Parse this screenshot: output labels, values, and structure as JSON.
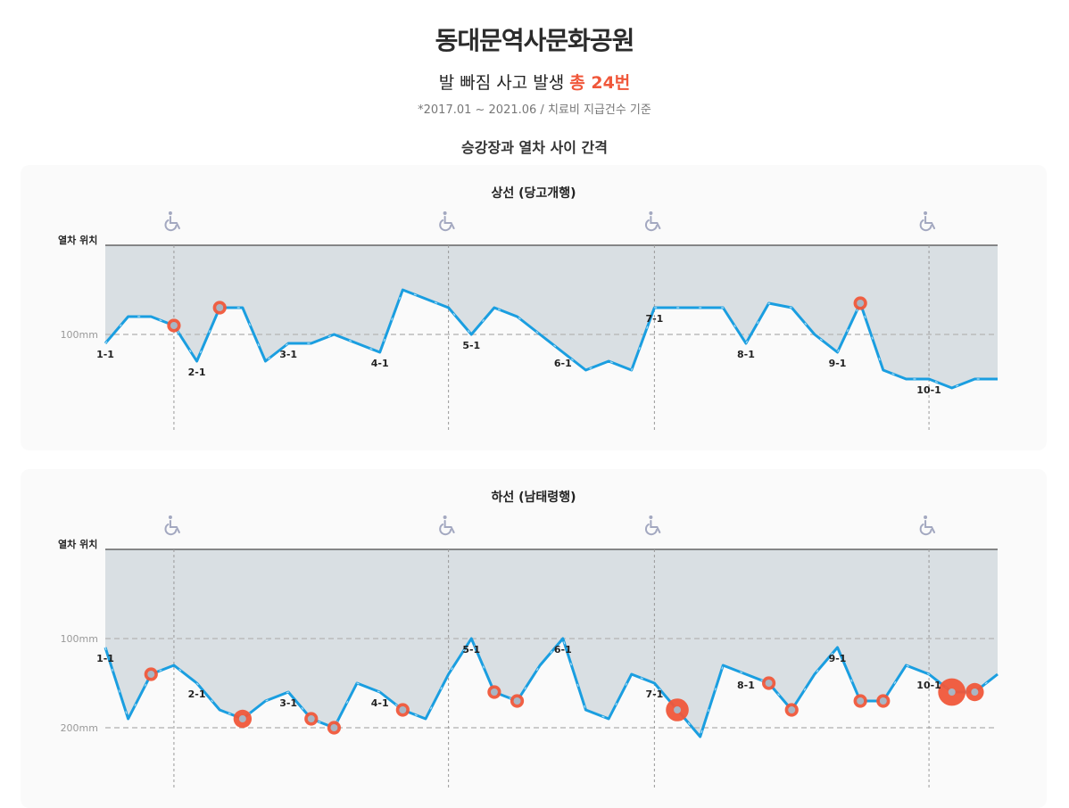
{
  "header": {
    "title": "동대문역사문화공원",
    "subtitle_prefix": "발 빠짐 사고 발생 ",
    "subtitle_highlight": "총 24번",
    "note": "*2017.01 ~ 2021.06 / 치료비 지급건수 기준",
    "section_label": "승강장과 열차 사이 간격"
  },
  "colors": {
    "line": "#1a9ee0",
    "line_highlight": "#bfe6fa",
    "area": "#d9dfe3",
    "accident": "#f0573a",
    "accident_center": "#a9b6c4",
    "wheelchair": "#a3a8c0",
    "reference_line": "#bbbbbb"
  },
  "chart_data": [
    {
      "type": "line",
      "title": "상선 (당고개행)",
      "ylabel": "열차 위치",
      "reference_lines": [
        {
          "value": 100,
          "label": "100mm"
        }
      ],
      "ylim": [
        0,
        150
      ],
      "x": [
        "1-1",
        "1-2",
        "1-3",
        "1-4",
        "2-1",
        "2-2",
        "2-3",
        "2-4",
        "3-1",
        "3-2",
        "3-3",
        "3-4",
        "4-1",
        "4-2",
        "4-3",
        "4-4",
        "5-1",
        "5-2",
        "5-3",
        "5-4",
        "6-1",
        "6-2",
        "6-3",
        "6-4",
        "7-1",
        "7-2",
        "7-3",
        "7-4",
        "8-1",
        "8-2",
        "8-3",
        "8-4",
        "9-1",
        "9-2",
        "9-3",
        "9-4",
        "10-1",
        "10-2",
        "10-3",
        "10-4"
      ],
      "tick_labels": [
        "1-1",
        "2-1",
        "3-1",
        "4-1",
        "5-1",
        "6-1",
        "7-1",
        "8-1",
        "9-1",
        "10-1"
      ],
      "wheelchair_positions": [
        "1-4",
        "4-4",
        "7-1",
        "10-1"
      ],
      "values": [
        110,
        80,
        80,
        90,
        130,
        70,
        70,
        130,
        110,
        110,
        100,
        110,
        120,
        50,
        60,
        70,
        100,
        70,
        80,
        100,
        120,
        140,
        130,
        140,
        70,
        70,
        70,
        70,
        110,
        65,
        70,
        100,
        120,
        65,
        140,
        150,
        150,
        160,
        150,
        150
      ],
      "accidents": [
        {
          "x": "1-4",
          "count": 1
        },
        {
          "x": "2-2",
          "count": 1
        },
        {
          "x": "9-2",
          "count": 1
        }
      ]
    },
    {
      "type": "line",
      "title": "하선 (남태령행)",
      "ylabel": "열차 위치",
      "reference_lines": [
        {
          "value": 100,
          "label": "100mm"
        },
        {
          "value": 200,
          "label": "200mm"
        }
      ],
      "ylim": [
        0,
        200
      ],
      "x": [
        "1-1",
        "1-2",
        "1-3",
        "1-4",
        "2-1",
        "2-2",
        "2-3",
        "2-4",
        "3-1",
        "3-2",
        "3-3",
        "3-4",
        "4-1",
        "4-2",
        "4-3",
        "4-4",
        "5-1",
        "5-2",
        "5-3",
        "5-4",
        "6-1",
        "6-2",
        "6-3",
        "6-4",
        "7-1",
        "7-2",
        "7-3",
        "7-4",
        "8-1",
        "8-2",
        "8-3",
        "8-4",
        "9-1",
        "9-2",
        "9-3",
        "9-4",
        "10-1",
        "10-2",
        "10-3",
        "10-4"
      ],
      "tick_labels": [
        "1-1",
        "2-1",
        "3-1",
        "4-1",
        "5-1",
        "6-1",
        "7-1",
        "8-1",
        "9-1",
        "10-1"
      ],
      "wheelchair_positions": [
        "1-4",
        "4-4",
        "7-1",
        "10-1"
      ],
      "values": [
        110,
        190,
        140,
        130,
        150,
        180,
        190,
        170,
        160,
        190,
        200,
        150,
        160,
        180,
        190,
        140,
        100,
        160,
        170,
        130,
        100,
        180,
        190,
        140,
        150,
        180,
        210,
        130,
        140,
        150,
        180,
        140,
        110,
        170,
        170,
        130,
        140,
        160,
        160,
        140
      ],
      "accidents": [
        {
          "x": "1-3",
          "count": 1
        },
        {
          "x": "2-3",
          "count": 2
        },
        {
          "x": "3-2",
          "count": 1
        },
        {
          "x": "3-3",
          "count": 1
        },
        {
          "x": "4-2",
          "count": 1
        },
        {
          "x": "5-2",
          "count": 1
        },
        {
          "x": "5-3",
          "count": 1
        },
        {
          "x": "7-2",
          "count": 3
        },
        {
          "x": "8-2",
          "count": 1
        },
        {
          "x": "8-3",
          "count": 1
        },
        {
          "x": "9-2",
          "count": 1
        },
        {
          "x": "9-3",
          "count": 1
        },
        {
          "x": "10-2",
          "count": 4
        },
        {
          "x": "10-3",
          "count": 2
        }
      ]
    }
  ]
}
